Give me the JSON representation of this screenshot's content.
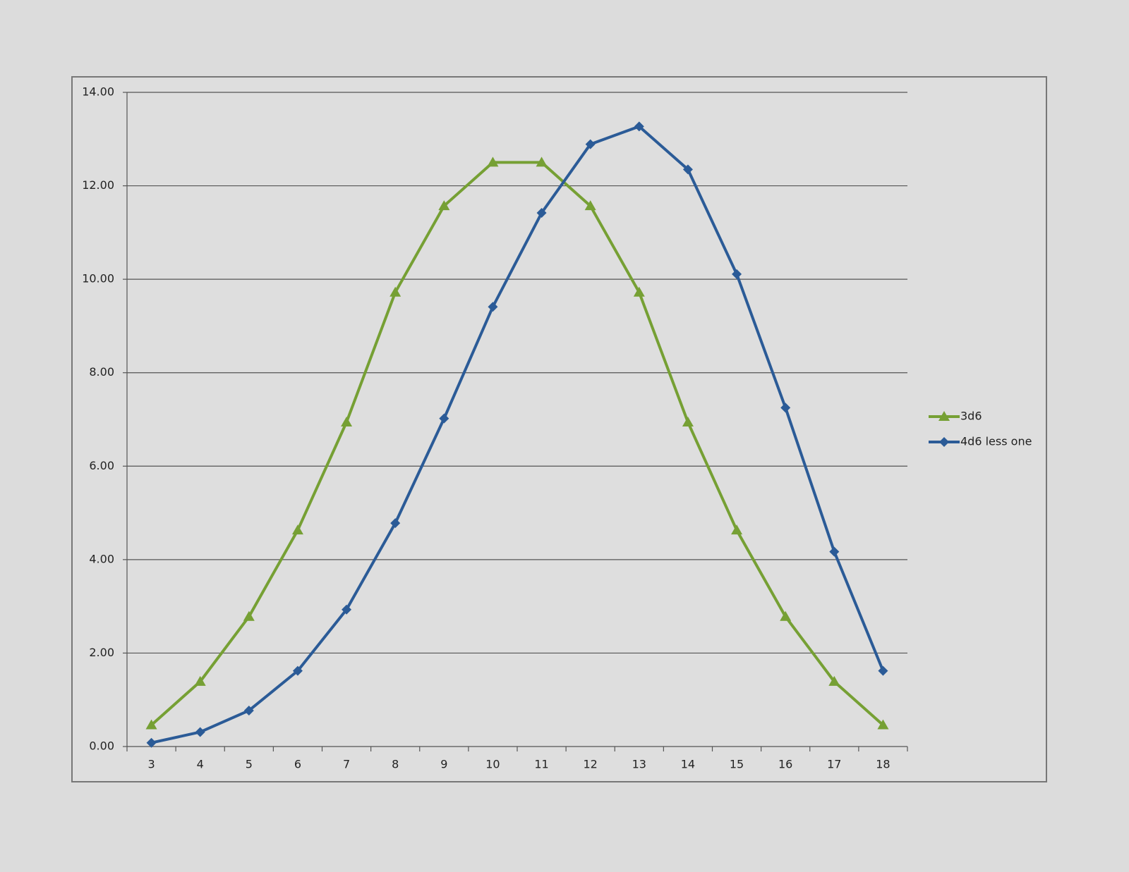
{
  "chart_data": {
    "type": "line",
    "categories": [
      "3",
      "4",
      "5",
      "6",
      "7",
      "8",
      "9",
      "10",
      "11",
      "12",
      "13",
      "14",
      "15",
      "16",
      "17",
      "18"
    ],
    "series": [
      {
        "name": "3d6",
        "color": "#76a034",
        "marker": "triangle",
        "values": [
          0.46,
          1.39,
          2.78,
          4.63,
          6.94,
          9.72,
          11.57,
          12.5,
          12.5,
          11.57,
          9.72,
          6.94,
          4.63,
          2.78,
          1.39,
          0.46
        ]
      },
      {
        "name": "4d6 less one",
        "color": "#2b5b97",
        "marker": "diamond",
        "values": [
          0.08,
          0.31,
          0.77,
          1.62,
          2.93,
          4.78,
          7.02,
          9.41,
          11.42,
          12.89,
          13.27,
          12.35,
          10.11,
          7.25,
          4.17,
          1.62
        ]
      }
    ],
    "ylim": [
      0,
      14
    ],
    "yticks": [
      {
        "value": 0,
        "label": "0.00"
      },
      {
        "value": 2,
        "label": "2.00"
      },
      {
        "value": 4,
        "label": "4.00"
      },
      {
        "value": 6,
        "label": "6.00"
      },
      {
        "value": 8,
        "label": "8.00"
      },
      {
        "value": 10,
        "label": "10.00"
      },
      {
        "value": 12,
        "label": "12.00"
      },
      {
        "value": 14,
        "label": "14.00"
      }
    ],
    "grid": true,
    "legend": "right"
  }
}
